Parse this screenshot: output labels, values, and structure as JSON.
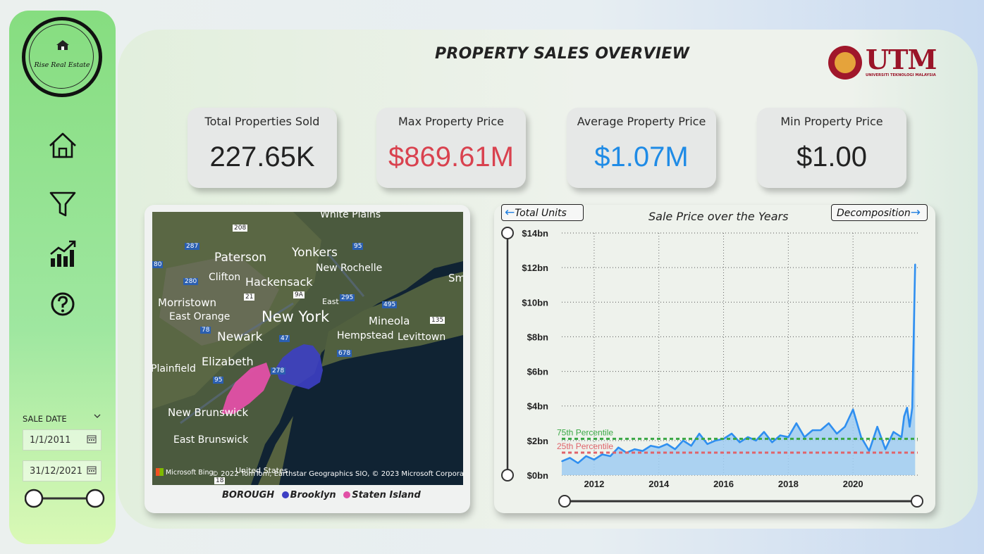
{
  "sidebar": {
    "logo_text": "Rise Real Estate",
    "nav": [
      {
        "icon": "home-icon"
      },
      {
        "icon": "filter-icon"
      },
      {
        "icon": "bar-chart-icon"
      },
      {
        "icon": "help-icon"
      }
    ],
    "slicer": {
      "title": "SALE DATE",
      "start_date": "1/1/2011",
      "end_date": "31/12/2021"
    }
  },
  "header": {
    "title": "PROPERTY SALES OVERVIEW",
    "university_logo": "UTM",
    "university_name": "UNIVERSITI TEKNOLOGI MALAYSIA"
  },
  "kpis": [
    {
      "label": "Total Properties Sold",
      "value": "227.65K",
      "color": "#222222"
    },
    {
      "label": "Max Property Price",
      "value": "$869.61M",
      "color": "#d9424f"
    },
    {
      "label": "Average Property Price",
      "value": "$1.07M",
      "color": "#1f8be6"
    },
    {
      "label": "Min Property Price",
      "value": "$1.00",
      "color": "#222222"
    }
  ],
  "map": {
    "labels": [
      "White Plains",
      "Paterson",
      "Yonkers",
      "New Rochelle",
      "Clifton",
      "Hackensack",
      "Morristown",
      "East Orange",
      "New York",
      "Mineola",
      "Newark",
      "Hempstead",
      "Levittown",
      "Elizabeth",
      "Plainfield",
      "New Brunswick",
      "East Brunswick",
      "Sm",
      "East",
      "United States"
    ],
    "road_badges": [
      "208",
      "287",
      "95",
      "80",
      "280",
      "21",
      "9A",
      "295",
      "495",
      "135",
      "78",
      "47",
      "678",
      "95",
      "278",
      "18"
    ],
    "attribution": "© 2022 TomTom, Earthstar Geographics SIO, © 2023 Microsoft Corporation",
    "provider": "Microsoft Bing",
    "legend": {
      "title": "BOROUGH",
      "items": [
        {
          "name": "Brooklyn",
          "color": "#3d3fc4"
        },
        {
          "name": "Staten Island",
          "color": "#e150a6"
        }
      ]
    }
  },
  "chart_buttons": {
    "left": "Total Units",
    "right": "Decomposition"
  },
  "chart_data": {
    "type": "area",
    "title": "Sale Price over the Years",
    "ylim": [
      0,
      14
    ],
    "yticks": [
      "$0bn",
      "$2bn",
      "$4bn",
      "$6bn",
      "$8bn",
      "$10bn",
      "$12bn",
      "$14bn"
    ],
    "xticks": [
      "2012",
      "2014",
      "2016",
      "2018",
      "2020"
    ],
    "xlim": [
      2011.0,
      2022.0
    ],
    "grid": true,
    "reference_lines": [
      {
        "label": "75th Percentile",
        "value": 2.1,
        "color": "#3aa845"
      },
      {
        "label": "25th Percentile",
        "value": 1.3,
        "color": "#e0646b"
      }
    ],
    "series": [
      {
        "color": "#2f8ff0",
        "x": [
          2011.0,
          2011.25,
          2011.5,
          2011.75,
          2012.0,
          2012.25,
          2012.5,
          2012.75,
          2013.0,
          2013.25,
          2013.5,
          2013.75,
          2014.0,
          2014.25,
          2014.5,
          2014.75,
          2015.0,
          2015.25,
          2015.5,
          2015.75,
          2016.0,
          2016.25,
          2016.5,
          2016.75,
          2017.0,
          2017.25,
          2017.5,
          2017.75,
          2018.0,
          2018.25,
          2018.5,
          2018.75,
          2019.0,
          2019.25,
          2019.5,
          2019.75,
          2020.0,
          2020.25,
          2020.5,
          2020.75,
          2021.0,
          2021.25,
          2021.5,
          2021.58,
          2021.67,
          2021.75,
          2021.83,
          2021.92
        ],
        "values": [
          0.8,
          1.0,
          0.7,
          1.1,
          0.9,
          1.2,
          1.1,
          1.6,
          1.3,
          1.5,
          1.4,
          1.7,
          1.6,
          1.8,
          1.5,
          2.0,
          1.7,
          2.4,
          1.8,
          2.0,
          2.1,
          2.4,
          1.9,
          2.2,
          2.0,
          2.5,
          1.9,
          2.3,
          2.2,
          3.0,
          2.2,
          2.6,
          2.6,
          3.0,
          2.4,
          2.8,
          3.8,
          2.2,
          1.4,
          2.8,
          1.5,
          2.5,
          2.2,
          3.4,
          3.9,
          2.8,
          3.9,
          12.2
        ]
      }
    ]
  }
}
